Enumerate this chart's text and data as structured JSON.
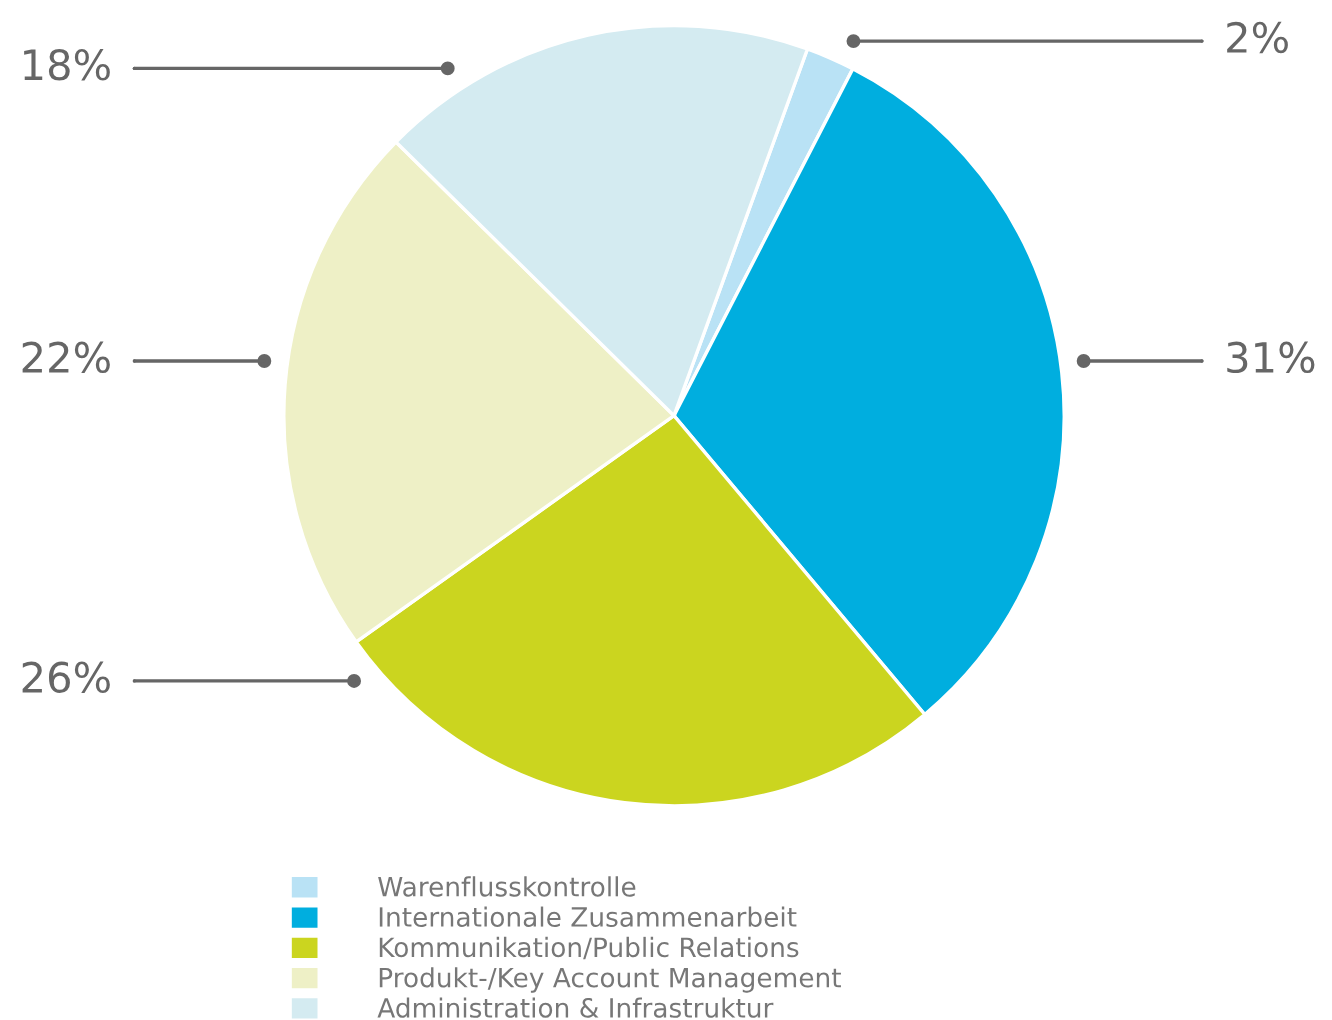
{
  "chart_data": {
    "type": "pie",
    "categories": [
      "Warenflusskontrolle",
      "Internationale Zusammenarbeit",
      "Kommunikation/Public Relations",
      "Produkt-/Key Account Management",
      "Administration & Infrastruktur"
    ],
    "values": [
      2,
      31,
      26,
      22,
      18
    ],
    "colors": [
      "#b9e2f5",
      "#00aedf",
      "#cbd51f",
      "#eef0c6",
      "#d4ebf1"
    ],
    "value_labels": [
      "2%",
      "31%",
      "26%",
      "22%",
      "18%"
    ],
    "legend": "bottom"
  }
}
